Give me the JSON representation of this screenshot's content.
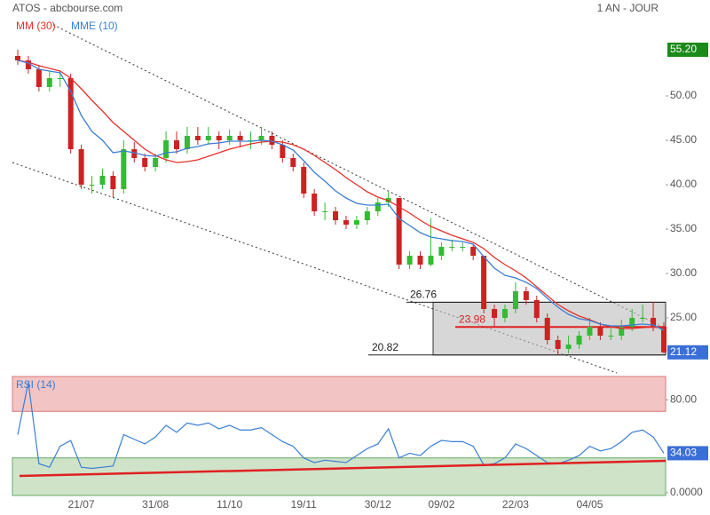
{
  "chart_data": [
    {
      "type": "candlestick",
      "title": "ATOS - abcbourse.com",
      "subtitle": "1 AN - JOUR",
      "categories": [
        null,
        null,
        null,
        null,
        null,
        null,
        "21/07",
        null,
        null,
        null,
        null,
        null,
        null,
        "31/08",
        null,
        null,
        null,
        null,
        null,
        null,
        "11/10",
        null,
        null,
        null,
        null,
        null,
        null,
        "19/11",
        null,
        null,
        null,
        null,
        null,
        null,
        "30/12",
        null,
        null,
        null,
        null,
        null,
        "09/02",
        null,
        null,
        null,
        null,
        null,
        null,
        "22/03",
        null,
        null,
        null,
        null,
        null,
        null,
        "04/05",
        null,
        null,
        null,
        null,
        null,
        null,
        null
      ],
      "candles": [
        [
          54.5,
          55.2,
          53.5,
          54
        ],
        [
          54,
          54.5,
          52.5,
          53
        ],
        [
          53,
          53.5,
          50.5,
          51
        ],
        [
          51,
          52.8,
          50.5,
          52
        ],
        [
          52,
          52.8,
          51,
          52
        ],
        [
          52,
          52.5,
          43.5,
          44
        ],
        [
          44,
          44.5,
          39.5,
          40
        ],
        [
          40,
          41,
          39,
          40
        ],
        [
          40,
          41.8,
          39.5,
          41
        ],
        [
          41,
          41.5,
          38.5,
          39.5
        ],
        [
          39.5,
          45,
          39,
          44
        ],
        [
          44,
          44.8,
          42.5,
          43
        ],
        [
          43,
          43.5,
          41.5,
          42
        ],
        [
          42,
          43.5,
          41.5,
          43
        ],
        [
          43,
          46,
          42.5,
          45
        ],
        [
          45,
          46,
          43.5,
          44
        ],
        [
          44,
          46.5,
          43.5,
          45.5
        ],
        [
          45.5,
          46.5,
          44.5,
          45
        ],
        [
          45,
          46.5,
          44.5,
          45.5
        ],
        [
          45.5,
          46,
          44,
          45
        ],
        [
          45,
          46.2,
          44.5,
          45.5
        ],
        [
          45.5,
          46,
          44.2,
          45
        ],
        [
          45,
          46,
          44,
          45
        ],
        [
          45,
          46.5,
          44.5,
          45.5
        ],
        [
          45.5,
          46,
          44,
          44.5
        ],
        [
          44.5,
          45,
          42.5,
          43
        ],
        [
          43,
          43.5,
          41.5,
          42
        ],
        [
          42,
          42.5,
          38.5,
          39
        ],
        [
          39,
          39.5,
          36.5,
          37
        ],
        [
          37,
          38,
          36,
          37
        ],
        [
          37,
          37.5,
          35.5,
          36
        ],
        [
          36,
          36.5,
          35,
          35.5
        ],
        [
          35.5,
          36.5,
          35,
          36
        ],
        [
          36,
          37.5,
          35.5,
          37
        ],
        [
          37,
          38.5,
          36.5,
          38
        ],
        [
          38,
          39.2,
          37.5,
          38.5
        ],
        [
          38.5,
          38.5,
          30.5,
          31
        ],
        [
          31,
          32.5,
          30.5,
          32
        ],
        [
          32,
          32.5,
          30.5,
          31
        ],
        [
          31,
          36.2,
          30.8,
          32
        ],
        [
          32,
          33.5,
          31.5,
          33
        ],
        [
          33,
          33.8,
          32.5,
          33
        ],
        [
          33,
          33.5,
          32.5,
          33
        ],
        [
          33,
          33.2,
          31.5,
          32
        ],
        [
          32,
          32,
          25.5,
          26
        ],
        [
          26,
          26.5,
          24,
          25
        ],
        [
          25,
          26.5,
          24.5,
          26
        ],
        [
          26,
          29,
          25.5,
          28
        ],
        [
          28,
          28.5,
          26.5,
          27
        ],
        [
          27,
          27.5,
          24.5,
          25
        ],
        [
          25,
          25.5,
          22,
          22.5
        ],
        [
          22.5,
          23,
          20.9,
          21.5
        ],
        [
          21.5,
          23,
          21,
          22
        ],
        [
          22,
          23.5,
          21.5,
          23
        ],
        [
          23,
          25,
          22.5,
          24
        ],
        [
          24,
          24.5,
          22.5,
          23
        ],
        [
          23,
          23.8,
          22.5,
          23
        ],
        [
          23,
          24.8,
          22.5,
          24
        ],
        [
          24,
          26,
          23.5,
          25
        ],
        [
          25,
          26.5,
          24.5,
          25
        ],
        [
          25,
          26.8,
          23.5,
          24
        ],
        [
          24,
          24.5,
          21,
          21.12
        ]
      ],
      "up_color": "#33bb33",
      "down_color": "#cc2222",
      "series": [
        {
          "name": "MM (30)",
          "color": "#e8302a",
          "values": [
            54,
            53.8,
            53.4,
            53.1,
            52.8,
            52,
            50.8,
            49.5,
            48.3,
            47,
            46,
            45,
            44,
            43.3,
            42.8,
            42.5,
            42.6,
            42.8,
            43.2,
            43.6,
            44,
            44.3,
            44.6,
            44.8,
            44.9,
            44.8,
            44.5,
            44,
            43.3,
            42.5,
            41.7,
            40.8,
            40,
            39.2,
            38.6,
            38.2,
            37.5,
            36.8,
            36,
            35.3,
            34.8,
            34.3,
            33.9,
            33.5,
            32.8,
            31.8,
            31,
            30.3,
            29.5,
            28.5,
            27.5,
            26.5,
            25.8,
            25.2,
            24.8,
            24.3,
            24,
            23.8,
            23.8,
            23.9,
            24,
            23.8
          ]
        },
        {
          "name": "MME (10)",
          "color": "#3a7fd5",
          "values": [
            54,
            53.7,
            53,
            52.8,
            52.6,
            50.5,
            47.8,
            46,
            45,
            43.6,
            43.8,
            43.6,
            43.3,
            43.2,
            43.6,
            43.7,
            44.1,
            44.3,
            44.6,
            44.7,
            44.9,
            44.9,
            44.9,
            45,
            44.9,
            44.5,
            43.9,
            42.7,
            41.4,
            40.4,
            39.3,
            38.5,
            37.9,
            37.7,
            37.7,
            37.8,
            36.2,
            35.4,
            34.6,
            34.1,
            33.9,
            33.7,
            33.6,
            33.3,
            31.9,
            30.6,
            29.8,
            29.5,
            29,
            28.3,
            27.2,
            26.2,
            25.4,
            24.9,
            24.7,
            24.3,
            24.1,
            24.1,
            24.2,
            24.3,
            24.2,
            23.6
          ]
        }
      ],
      "levels": [
        26.76,
        23.98,
        20.82
      ],
      "high_label": {
        "value": 55.2,
        "label": "55.20"
      },
      "ylim": [
        19.3,
        58.8
      ],
      "yticks": [
        {
          "value": 25,
          "label": "25.00"
        },
        {
          "value": 30,
          "label": "30.00"
        },
        {
          "value": 35,
          "label": "35.00"
        },
        {
          "value": 40,
          "label": "40.00"
        },
        {
          "value": 45,
          "label": "45.00"
        },
        {
          "value": 50,
          "label": "50.00"
        }
      ],
      "grid": false
    },
    {
      "type": "line",
      "title": "RSI (14)",
      "series": [
        {
          "name": "RSI (14)",
          "color": "#3a7fd5",
          "values": [
            50,
            95,
            25,
            22,
            40,
            45,
            22,
            21,
            22,
            23,
            50,
            46,
            42,
            48,
            58,
            52,
            60,
            58,
            60,
            55,
            58,
            54,
            54,
            56,
            50,
            44,
            40,
            30,
            26,
            28,
            27,
            26,
            32,
            38,
            42,
            55,
            30,
            34,
            32,
            40,
            45,
            44,
            44,
            40,
            24,
            25,
            30,
            42,
            38,
            32,
            26,
            25,
            28,
            32,
            40,
            36,
            38,
            44,
            52,
            54,
            48,
            34.03
          ]
        }
      ],
      "overbought": 70,
      "oversold": 30,
      "ylim": [
        0,
        100
      ],
      "yticks": [
        {
          "value": 80,
          "label": "80.00"
        },
        {
          "value": 0,
          "label": "0.0000"
        }
      ],
      "grid": false
    }
  ]
}
